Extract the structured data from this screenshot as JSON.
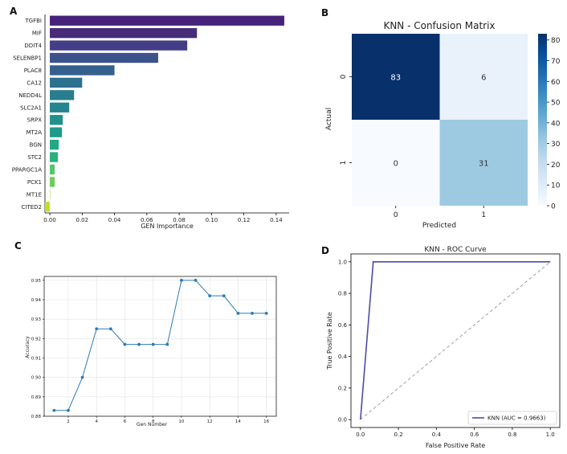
{
  "chart_data": [
    {
      "panel": "A",
      "type": "bar",
      "orientation": "horizontal",
      "title": "",
      "xlabel": "GEN Importance",
      "ylabel": "",
      "categories": [
        "TGFBI",
        "MIF",
        "DDIT4",
        "SELENBP1",
        "PLAC8",
        "CA12",
        "NEDD4L",
        "SLC2A1",
        "SRPX",
        "MT2A",
        "BGN",
        "STC2",
        "PPARGC1A",
        "PCK1",
        "MT1E",
        "CITED2"
      ],
      "values": [
        0.145,
        0.091,
        0.085,
        0.067,
        0.04,
        0.02,
        0.015,
        0.012,
        0.008,
        0.0075,
        0.0055,
        0.005,
        0.003,
        0.003,
        0.0,
        -0.003
      ],
      "colors": [
        "#46237a",
        "#472c7a",
        "#433e85",
        "#3b528b",
        "#355f8d",
        "#2c718e",
        "#287d8e",
        "#25858e",
        "#21918c",
        "#1e9b8a",
        "#22a884",
        "#2ab07f",
        "#54c568",
        "#6ccd5a",
        "#a5db36",
        "#c0df25"
      ],
      "xlim": [
        -0.003,
        0.148
      ],
      "xticks": [
        "0.00",
        "0.02",
        "0.04",
        "0.06",
        "0.08",
        "0.10",
        "0.12",
        "0.14"
      ]
    },
    {
      "panel": "B",
      "type": "heatmap",
      "title": "KNN - Confusion Matrix",
      "xlabel": "Predicted",
      "ylabel": "Actual",
      "x_categories": [
        "0",
        "1"
      ],
      "y_categories": [
        "0",
        "1"
      ],
      "values": [
        [
          83,
          6
        ],
        [
          0,
          31
        ]
      ],
      "cell_labels": [
        [
          "83",
          "6"
        ],
        [
          "0",
          "31"
        ]
      ],
      "colorbar_range": [
        0,
        83
      ],
      "colorbar_ticks": [
        "0",
        "10",
        "20",
        "30",
        "40",
        "50",
        "60",
        "70",
        "80"
      ]
    },
    {
      "panel": "C",
      "type": "line",
      "title": "",
      "xlabel": "Gen Number",
      "ylabel": "Accuracy",
      "x": [
        1,
        2,
        3,
        4,
        5,
        6,
        7,
        8,
        9,
        10,
        11,
        12,
        13,
        14,
        15,
        16
      ],
      "y": [
        0.883,
        0.883,
        0.9,
        0.925,
        0.925,
        0.917,
        0.917,
        0.917,
        0.917,
        0.95,
        0.95,
        0.942,
        0.942,
        0.933,
        0.933,
        0.933
      ],
      "xlim": [
        0.3,
        16.7
      ],
      "ylim": [
        0.88,
        0.952
      ],
      "xticks": [
        "2",
        "4",
        "6",
        "8",
        "10",
        "12",
        "14",
        "16"
      ],
      "yticks": [
        "0.88",
        "0.89",
        "0.90",
        "0.91",
        "0.92",
        "0.93",
        "0.94",
        "0.95"
      ],
      "grid": true,
      "color": "#2c7bb6"
    },
    {
      "panel": "D",
      "type": "line",
      "title": "KNN - ROC Curve",
      "xlabel": "False Positive Rate",
      "ylabel": "True Positive Rate",
      "series": [
        {
          "name": "KNN (AUC = 0.9663)",
          "x": [
            0.0,
            0.0674,
            1.0
          ],
          "y": [
            0.0,
            1.0,
            1.0
          ],
          "color": "#4b4ba8"
        },
        {
          "name": "",
          "x": [
            0.0,
            1.0
          ],
          "y": [
            0.0,
            1.0
          ],
          "color": "#888888",
          "dashed": true
        }
      ],
      "xlim": [
        -0.05,
        1.05
      ],
      "ylim": [
        -0.05,
        1.05
      ],
      "xticks": [
        "0.0",
        "0.2",
        "0.4",
        "0.6",
        "0.8",
        "1.0"
      ],
      "yticks": [
        "0.0",
        "0.2",
        "0.4",
        "0.6",
        "0.8",
        "1.0"
      ],
      "legend_position": "bottom-right"
    }
  ],
  "panel_labels": [
    "A",
    "B",
    "C",
    "D"
  ]
}
